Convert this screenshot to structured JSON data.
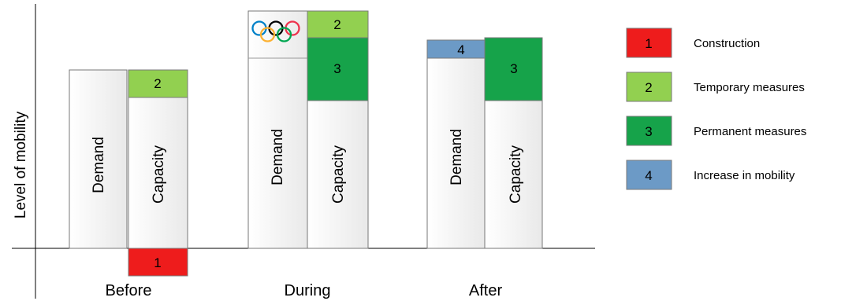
{
  "y_axis_label": "Level of mobility",
  "bar_labels": {
    "demand": "Demand",
    "capacity": "Capacity"
  },
  "periods": [
    {
      "name": "Before"
    },
    {
      "name": "During"
    },
    {
      "name": "After"
    }
  ],
  "segments": {
    "before_capacity_top": "2",
    "before_capacity_below": "1",
    "during_capacity_top": "2",
    "during_capacity_mid": "3",
    "after_demand_top": "4",
    "after_capacity_top": "3"
  },
  "legend": [
    {
      "number": "1",
      "label": "Construction",
      "color": "#ee1c1c"
    },
    {
      "number": "2",
      "label": "Temporary measures",
      "color": "#92d050"
    },
    {
      "number": "3",
      "label": "Permanent measures",
      "color": "#16a34a"
    },
    {
      "number": "4",
      "label": "Increase in mobility",
      "color": "#6c9ac6"
    }
  ],
  "icons": {
    "during_demand_top": "olympic-rings-icon"
  }
}
